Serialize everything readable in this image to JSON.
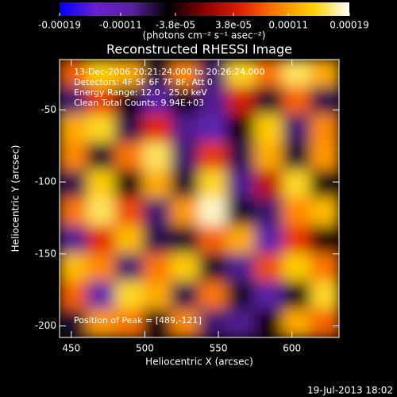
{
  "chart_data": {
    "type": "heatmap",
    "title": "Reconstructed RHESSI Image",
    "x_label": "Heliocentric X (arcsec)",
    "y_label": "Heliocentric Y (arcsec)",
    "xlim": [
      442,
      632
    ],
    "ylim": [
      -208,
      -15
    ],
    "xticks": [
      450,
      500,
      550,
      600
    ],
    "yticks": [
      -50,
      -100,
      -150,
      -200
    ],
    "colorbar": {
      "label": "(photons cm⁻² s⁻¹ asec⁻²)",
      "range": [
        -0.00019,
        0.00019
      ],
      "ticks": [
        -0.00019,
        -0.00011,
        {
          "value": -3.8e-05,
          "label": "-3.8e-05"
        },
        {
          "value": 3.8e-05,
          "label": "3.8e-05"
        },
        0.00011,
        0.00019
      ],
      "colors": [
        "#0000ff",
        "#6a1fd0",
        "#5a20a0",
        "#000000",
        "#8a0000",
        "#e02000",
        "#ff8000",
        "#ffd000",
        "#ffffff"
      ]
    },
    "z": [
      [
        8e-05,
        0.00014,
        0.00012,
        -6e-05,
        0.0001,
        -8e-05,
        0.00015,
        9e-05,
        0.00016,
        0.00012
      ],
      [
        -8e-05,
        6e-05,
        -5e-05,
        -0.0001,
        -4e-05,
        -9e-05,
        4e-05,
        -6e-05,
        8e-05,
        -7e-05
      ],
      [
        0.00012,
        0.00015,
        -7e-05,
        5e-05,
        -9e-05,
        -0.00011,
        -4e-05,
        0.00014,
        -8e-05,
        0.0001
      ],
      [
        0.0001,
        -6e-05,
        9e-05,
        0.00016,
        -8e-05,
        6e-05,
        -7e-05,
        0.00012,
        -6e-05,
        0.00011
      ],
      [
        -7e-05,
        0.00014,
        -5e-05,
        0.00012,
        -6e-05,
        0.00015,
        -9e-05,
        3e-05,
        0.00015,
        -5e-05
      ],
      [
        9e-05,
        0.00016,
        7e-05,
        -8e-05,
        0.00011,
        0.00018,
        -6e-05,
        -8e-05,
        0.0001,
        0.00013
      ],
      [
        -9e-05,
        5e-05,
        0.00013,
        -7e-05,
        -6e-05,
        8e-05,
        0.00012,
        -0.0001,
        6e-05,
        -4e-05
      ],
      [
        0.00013,
        0.0001,
        -8e-05,
        9e-05,
        0.00014,
        -6e-05,
        -9e-05,
        7e-05,
        0.00014,
        9e-05
      ],
      [
        8e-05,
        -0.0001,
        0.00015,
        0.00012,
        -7e-05,
        9e-05,
        -6e-05,
        -0.0001,
        -5e-05,
        0.00015
      ],
      [
        -6e-05,
        0.00011,
        9e-05,
        -5e-05,
        0.0001,
        -8e-05,
        -9e-05,
        -4e-05,
        0.00012,
        8e-05
      ]
    ],
    "annotations": [
      "13-Dec-2006 20:21:24.000 to 20:26:24.000",
      "Detectors: 4F 5F 6F 7F 8F, Att 0",
      "Energy Range: 12.0 - 25.0 keV",
      "Clean    Total Counts: 9.94E+03"
    ],
    "peak_label": "Position of Peak = [489,-121]",
    "timestamp": "19-Jul-2013 18:02"
  }
}
